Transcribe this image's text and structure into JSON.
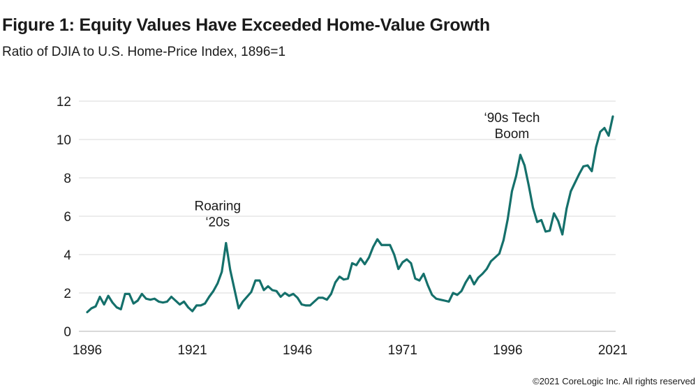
{
  "header": {
    "title": "Figure 1: Equity Values Have Exceeded Home-Value Growth",
    "subtitle": "Ratio of DJIA to U.S. Home-Price Index, 1896=1"
  },
  "footer": {
    "copyright": "©2021 CoreLogic Inc. All rights reserved"
  },
  "colors": {
    "line": "#15706b",
    "grid": "#d9d9d9",
    "axis": "#b3b3b3",
    "text": "#1a1a1a"
  },
  "chart_data": {
    "type": "line",
    "title": "Figure 1: Equity Values Have Exceeded Home-Value Growth",
    "subtitle": "Ratio of DJIA to U.S. Home-Price Index, 1896=1",
    "xlabel": "",
    "ylabel": "",
    "xlim": [
      1896,
      2021
    ],
    "ylim": [
      0,
      12
    ],
    "x_ticks": [
      1896,
      1921,
      1946,
      1971,
      1996,
      2021
    ],
    "y_ticks": [
      0,
      2,
      4,
      6,
      8,
      10,
      12
    ],
    "grid": "horizontal",
    "legend": "none",
    "annotations": [
      {
        "lines": [
          "Roaring",
          "‘20s"
        ],
        "x": 1928,
        "y": 4.6
      },
      {
        "lines": [
          "‘90s Tech",
          "Boom"
        ],
        "x": 1998,
        "y": 9.2
      }
    ],
    "series": [
      {
        "x": [
          1896,
          1897,
          1898,
          1899,
          1900,
          1901,
          1902,
          1903,
          1904,
          1905,
          1906,
          1907,
          1908,
          1909,
          1910,
          1911,
          1912,
          1913,
          1914,
          1915,
          1916,
          1917,
          1918,
          1919,
          1920,
          1921,
          1922,
          1923,
          1924,
          1925,
          1926,
          1927,
          1928,
          1929,
          1930,
          1931,
          1932,
          1933,
          1934,
          1935,
          1936,
          1937,
          1938,
          1939,
          1940,
          1941,
          1942,
          1943,
          1944,
          1945,
          1946,
          1947,
          1948,
          1949,
          1950,
          1951,
          1952,
          1953,
          1954,
          1955,
          1956,
          1957,
          1958,
          1959,
          1960,
          1961,
          1962,
          1963,
          1964,
          1965,
          1966,
          1967,
          1968,
          1969,
          1970,
          1971,
          1972,
          1973,
          1974,
          1975,
          1976,
          1977,
          1978,
          1979,
          1980,
          1981,
          1982,
          1983,
          1984,
          1985,
          1986,
          1987,
          1988,
          1989,
          1990,
          1991,
          1992,
          1993,
          1994,
          1995,
          1996,
          1997,
          1998,
          1999,
          2000,
          2001,
          2002,
          2003,
          2004,
          2005,
          2006,
          2007,
          2008,
          2009,
          2010,
          2011,
          2012,
          2013,
          2014,
          2015,
          2016,
          2017,
          2018,
          2019,
          2020,
          2021
        ],
        "values": [
          1.0,
          1.2,
          1.3,
          1.8,
          1.4,
          1.85,
          1.5,
          1.25,
          1.15,
          1.95,
          1.95,
          1.45,
          1.6,
          1.95,
          1.7,
          1.65,
          1.7,
          1.55,
          1.5,
          1.55,
          1.8,
          1.6,
          1.4,
          1.55,
          1.25,
          1.05,
          1.35,
          1.35,
          1.45,
          1.8,
          2.1,
          2.5,
          3.1,
          4.6,
          3.2,
          2.2,
          1.2,
          1.55,
          1.8,
          2.05,
          2.65,
          2.65,
          2.15,
          2.35,
          2.15,
          2.1,
          1.8,
          2.0,
          1.85,
          1.95,
          1.75,
          1.4,
          1.35,
          1.35,
          1.55,
          1.75,
          1.75,
          1.65,
          1.95,
          2.55,
          2.85,
          2.7,
          2.75,
          3.55,
          3.45,
          3.8,
          3.5,
          3.85,
          4.4,
          4.8,
          4.5,
          4.5,
          4.5,
          4.0,
          3.25,
          3.6,
          3.75,
          3.55,
          2.75,
          2.65,
          3.0,
          2.4,
          1.9,
          1.7,
          1.65,
          1.6,
          1.55,
          2.0,
          1.9,
          2.1,
          2.55,
          2.9,
          2.45,
          2.8,
          3.0,
          3.25,
          3.65,
          3.85,
          4.05,
          4.75,
          5.85,
          7.3,
          8.1,
          9.2,
          8.65,
          7.6,
          6.45,
          5.7,
          5.8,
          5.2,
          5.25,
          6.15,
          5.75,
          5.05,
          6.4,
          7.3,
          7.75,
          8.2,
          8.6,
          8.65,
          8.35,
          9.6,
          10.4,
          10.6,
          10.2,
          11.2
        ]
      }
    ]
  }
}
